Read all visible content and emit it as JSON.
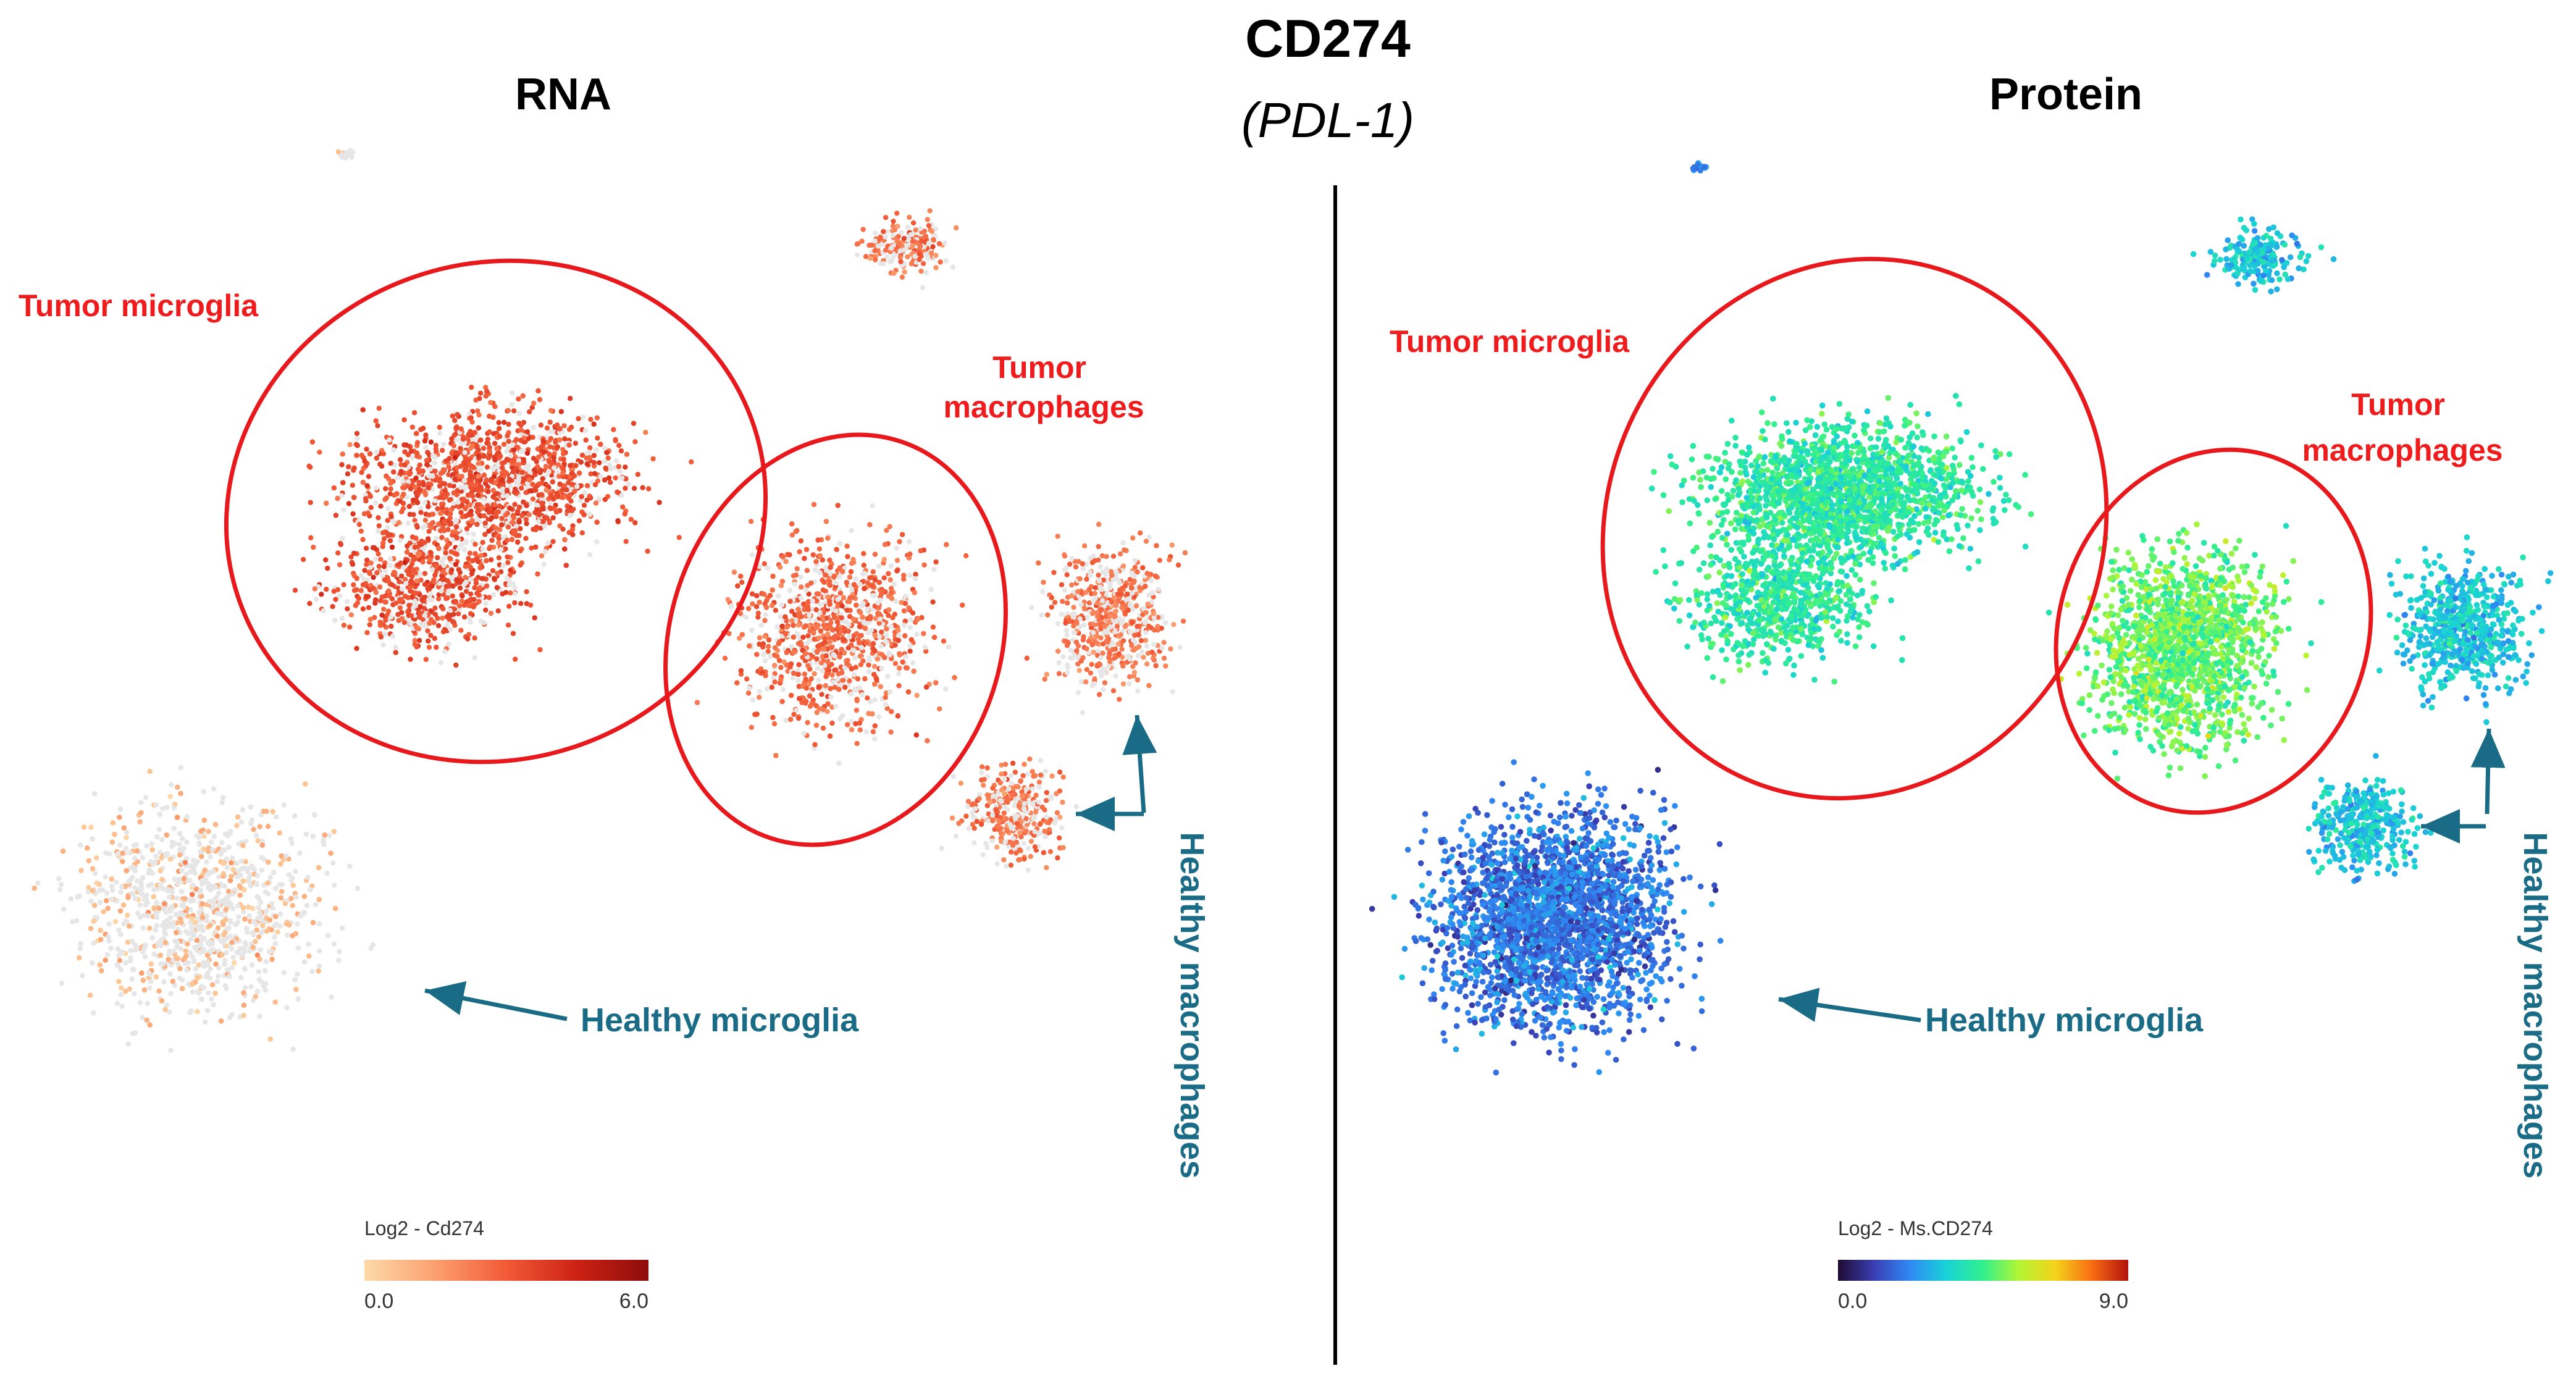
{
  "figure": {
    "title": "CD274",
    "subtitle": "(PDL-1)"
  },
  "colors": {
    "tumor_label": "#ee1c1c",
    "healthy_label": "#1a6c86",
    "ellipse": "#e8191c",
    "background_cells": "#e6e6e6",
    "divider": "#000000"
  },
  "icons": {
    "arrow": "arrow-icon"
  },
  "chart_data": [
    {
      "type": "scatter",
      "title": "RNA",
      "embedding": "UMAP of single cells (individual points not labeled)",
      "color_scale": {
        "title": "Log2 - Cd274",
        "min": 0.0,
        "max": 6.0,
        "min_label": "0.0",
        "max_label": "6.0",
        "colors": [
          "#fdd9a8",
          "#fca070",
          "#f25a37",
          "#cc2114",
          "#8e0c0c"
        ]
      },
      "groups": [
        {
          "name": "Tumor microglia",
          "kind": "tumor",
          "relative_expression": 0.62
        },
        {
          "name": "Tumor macrophages",
          "kind": "tumor",
          "relative_expression": 0.52
        },
        {
          "name": "Healthy macrophages",
          "kind": "healthy",
          "relative_expression": 0.45
        },
        {
          "name": "Healthy microglia",
          "kind": "healthy",
          "relative_expression": 0.12
        }
      ]
    },
    {
      "type": "scatter",
      "title": "Protein",
      "embedding": "UMAP of single cells (individual points not labeled)",
      "color_scale": {
        "title": "Log2 - Ms.CD274",
        "min": 0.0,
        "max": 9.0,
        "min_label": "0.0",
        "max_label": "9.0",
        "colors": [
          "#1e0b30",
          "#3b3fb5",
          "#2f8af5",
          "#19d3d6",
          "#31f08c",
          "#b4f533",
          "#f5d21b",
          "#f86c12",
          "#b2120c"
        ]
      },
      "groups": [
        {
          "name": "Tumor microglia",
          "kind": "tumor",
          "relative_expression": 0.47
        },
        {
          "name": "Tumor macrophages",
          "kind": "tumor",
          "relative_expression": 0.55
        },
        {
          "name": "Healthy macrophages",
          "kind": "healthy",
          "relative_expression": 0.36
        },
        {
          "name": "Healthy microglia",
          "kind": "healthy",
          "relative_expression": 0.22
        }
      ]
    }
  ]
}
